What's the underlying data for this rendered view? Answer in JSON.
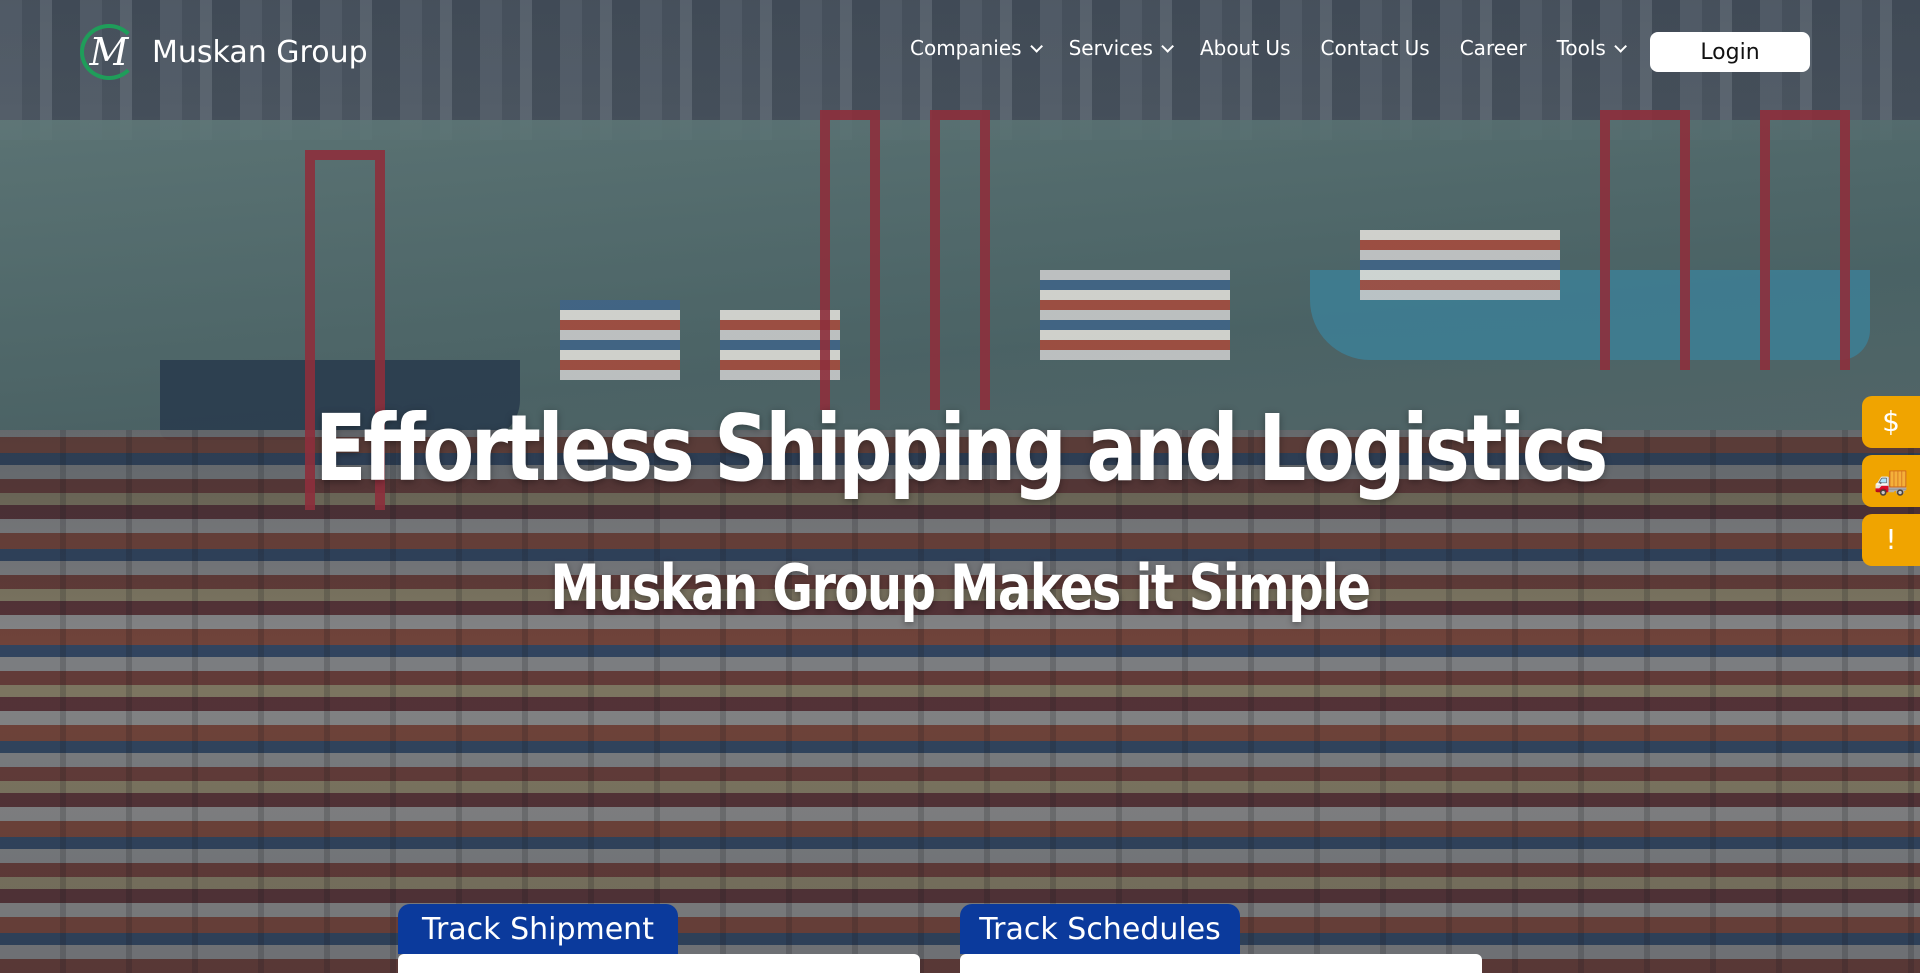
{
  "brand": {
    "name": "Muskan Group",
    "logo_letter": "M"
  },
  "nav": {
    "items": [
      {
        "label": "Companies",
        "has_dropdown": true
      },
      {
        "label": "Services",
        "has_dropdown": true
      },
      {
        "label": "About Us",
        "has_dropdown": false
      },
      {
        "label": "Contact Us",
        "has_dropdown": false
      },
      {
        "label": "Career",
        "has_dropdown": false
      },
      {
        "label": "Tools",
        "has_dropdown": true
      }
    ],
    "login_label": "Login"
  },
  "hero": {
    "headline": "Effortless Shipping and Logistics",
    "subheadline": "Muskan Group Makes it Simple"
  },
  "side_buttons": [
    {
      "icon": "invoice-dollar-icon",
      "glyph": "$"
    },
    {
      "icon": "truck-icon",
      "glyph": "🚚"
    },
    {
      "icon": "alert-message-icon",
      "glyph": "!"
    }
  ],
  "tabs": [
    {
      "label": "Track Shipment"
    },
    {
      "label": "Track Schedules"
    }
  ],
  "colors": {
    "accent_blue": "#0b3a9c",
    "side_button_orange": "#f0a400",
    "logo_green": "#1f9d5a"
  }
}
